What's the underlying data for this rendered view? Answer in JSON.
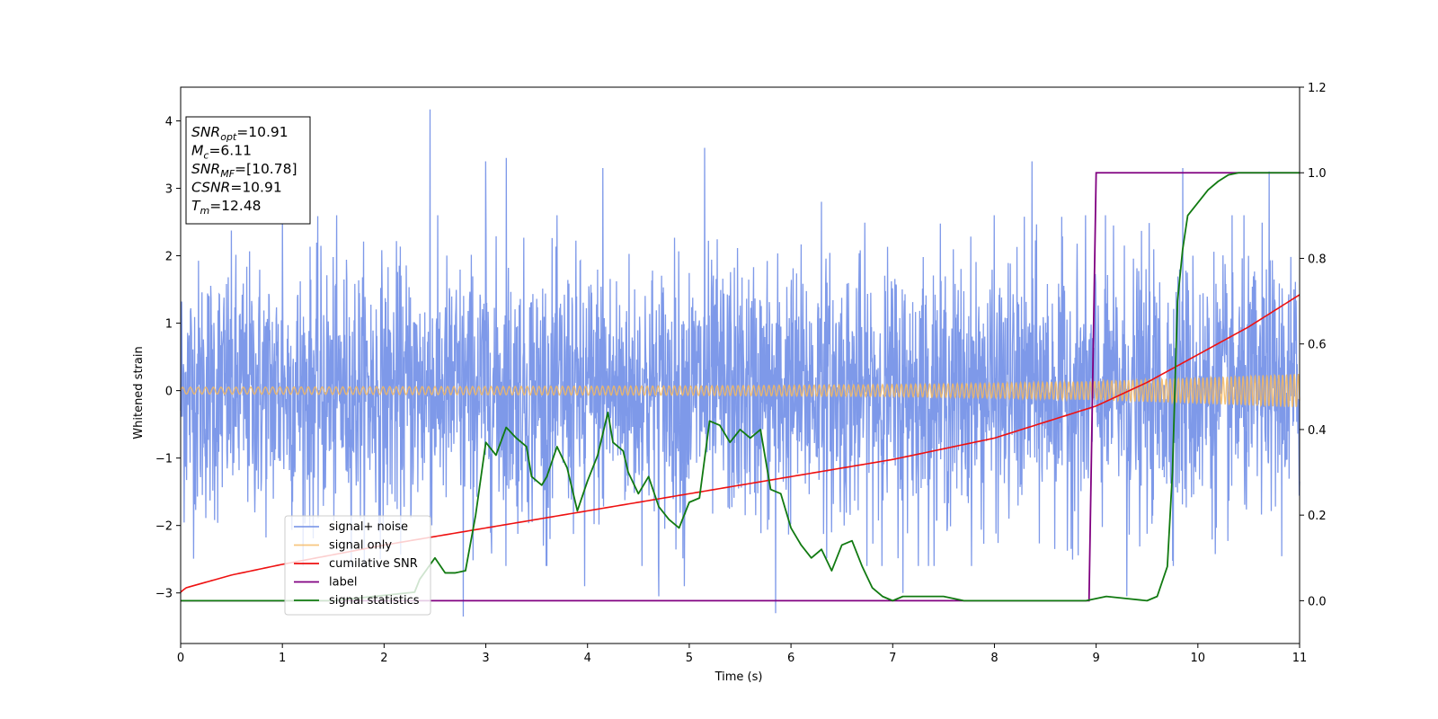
{
  "chart_data": {
    "type": "line",
    "xlabel": "Time (s)",
    "ylabel": "Whitened strain",
    "xlim": [
      0,
      11
    ],
    "ylim": [
      -3.75,
      4.5
    ],
    "y2lim": [
      -0.1,
      1.2
    ],
    "xticks": [
      "0",
      "1",
      "2",
      "3",
      "4",
      "5",
      "6",
      "7",
      "8",
      "9",
      "10",
      "11"
    ],
    "yticks": [
      "−3",
      "−2",
      "−1",
      "0",
      "1",
      "2",
      "3",
      "4"
    ],
    "y2ticks": [
      "0.0",
      "0.2",
      "0.4",
      "0.6",
      "0.8",
      "1.0",
      "1.2"
    ],
    "stats_box": [
      {
        "var": "SNR",
        "sub": "opt",
        "val": "=10.91"
      },
      {
        "var": "M",
        "sub": "c",
        "val": "=6.11"
      },
      {
        "var": "SNR",
        "sub": "MF",
        "val": "=[10.78]"
      },
      {
        "var": "CSNR",
        "sub": "",
        "val": "=10.91"
      },
      {
        "var": "T",
        "sub": "m",
        "val": "=12.48"
      }
    ],
    "legend": {
      "placement": "lower-left",
      "entries": [
        {
          "label": "signal+ noise",
          "color": "#7794e8",
          "alpha": 0.9
        },
        {
          "label": "signal only",
          "color": "#f5b860",
          "alpha": 0.8
        },
        {
          "label": "cumilative SNR",
          "color": "#ee1111",
          "alpha": 1
        },
        {
          "label": "label",
          "color": "#800080",
          "alpha": 1
        },
        {
          "label": "signal statistics",
          "color": "#117a11",
          "alpha": 1
        }
      ]
    },
    "series": [
      {
        "name": "signal+ noise",
        "axis": "left",
        "color": "#7794e8",
        "description": "whitened noisy strain, amplitude approx ±2.5, peak 4.17 at t=2.45, minimum -3.35 at t=2.78",
        "band_std": 0.95,
        "spikes": [
          {
            "x": 2.45,
            "y": 4.17
          },
          {
            "x": 2.78,
            "y": -3.35
          },
          {
            "x": 5.15,
            "y": 3.6
          },
          {
            "x": 3.0,
            "y": 3.4
          },
          {
            "x": 3.2,
            "y": 3.45
          },
          {
            "x": 4.15,
            "y": 3.3
          },
          {
            "x": 5.85,
            "y": -3.3
          },
          {
            "x": 4.7,
            "y": -3.05
          },
          {
            "x": 8.37,
            "y": 3.4
          },
          {
            "x": 9.85,
            "y": 3.3
          },
          {
            "x": 10.7,
            "y": 3.25
          },
          {
            "x": 1.0,
            "y": 2.6
          },
          {
            "x": 7.1,
            "y": -3.0
          },
          {
            "x": 3.97,
            "y": -2.9
          },
          {
            "x": 4.95,
            "y": -2.9
          },
          {
            "x": 9.3,
            "y": -3.05
          },
          {
            "x": 3.6,
            "y": -2.6
          },
          {
            "x": 6.3,
            "y": 2.8
          }
        ]
      },
      {
        "name": "signal only",
        "axis": "left",
        "color": "#f5b860",
        "envelope": {
          "x": [
            0,
            5,
            7,
            8,
            9,
            10,
            11
          ],
          "amp": [
            0.05,
            0.07,
            0.09,
            0.11,
            0.14,
            0.19,
            0.25
          ]
        }
      },
      {
        "name": "cumilative SNR",
        "axis": "right",
        "color": "#ee1111",
        "x": [
          0,
          0.05,
          0.5,
          1,
          2,
          3,
          4,
          5,
          6,
          7,
          8,
          9,
          9.5,
          10,
          10.5,
          11
        ],
        "y": [
          0.02,
          0.03,
          0.06,
          0.085,
          0.13,
          0.17,
          0.21,
          0.25,
          0.29,
          0.33,
          0.38,
          0.455,
          0.51,
          0.575,
          0.64,
          0.715
        ]
      },
      {
        "name": "label",
        "axis": "right",
        "color": "#800080",
        "x": [
          0,
          8.93,
          9.0,
          11
        ],
        "y": [
          0,
          0,
          1,
          1
        ]
      },
      {
        "name": "signal statistics",
        "axis": "right",
        "color": "#117a11",
        "x": [
          0,
          1.5,
          2.3,
          2.35,
          2.5,
          2.6,
          2.7,
          2.8,
          2.9,
          3.0,
          3.1,
          3.2,
          3.3,
          3.4,
          3.45,
          3.55,
          3.6,
          3.7,
          3.8,
          3.9,
          4.0,
          4.1,
          4.2,
          4.25,
          4.35,
          4.4,
          4.5,
          4.6,
          4.7,
          4.8,
          4.9,
          5.0,
          5.1,
          5.2,
          5.3,
          5.4,
          5.5,
          5.6,
          5.7,
          5.8,
          5.9,
          6.0,
          6.1,
          6.2,
          6.3,
          6.4,
          6.5,
          6.6,
          6.7,
          6.8,
          6.9,
          7.0,
          7.1,
          7.3,
          7.5,
          7.7,
          8.0,
          8.5,
          8.9,
          9.0,
          9.1,
          9.3,
          9.5,
          9.6,
          9.7,
          9.75,
          9.8,
          9.85,
          9.9,
          10.0,
          10.1,
          10.2,
          10.3,
          10.4,
          10.6,
          11.0
        ],
        "y": [
          0,
          0.0,
          0.02,
          0.05,
          0.1,
          0.065,
          0.065,
          0.07,
          0.2,
          0.37,
          0.34,
          0.405,
          0.38,
          0.36,
          0.29,
          0.27,
          0.29,
          0.36,
          0.31,
          0.21,
          0.28,
          0.34,
          0.44,
          0.37,
          0.35,
          0.3,
          0.25,
          0.29,
          0.22,
          0.19,
          0.17,
          0.23,
          0.24,
          0.42,
          0.41,
          0.37,
          0.4,
          0.38,
          0.4,
          0.26,
          0.25,
          0.17,
          0.13,
          0.1,
          0.12,
          0.07,
          0.13,
          0.14,
          0.08,
          0.03,
          0.01,
          0.0,
          0.01,
          0.01,
          0.01,
          0.0,
          0.0,
          0.0,
          0.0,
          0.005,
          0.01,
          0.005,
          0.0,
          0.01,
          0.08,
          0.3,
          0.7,
          0.82,
          0.9,
          0.93,
          0.96,
          0.98,
          0.995,
          1.0,
          1.0,
          1.0
        ]
      }
    ]
  }
}
